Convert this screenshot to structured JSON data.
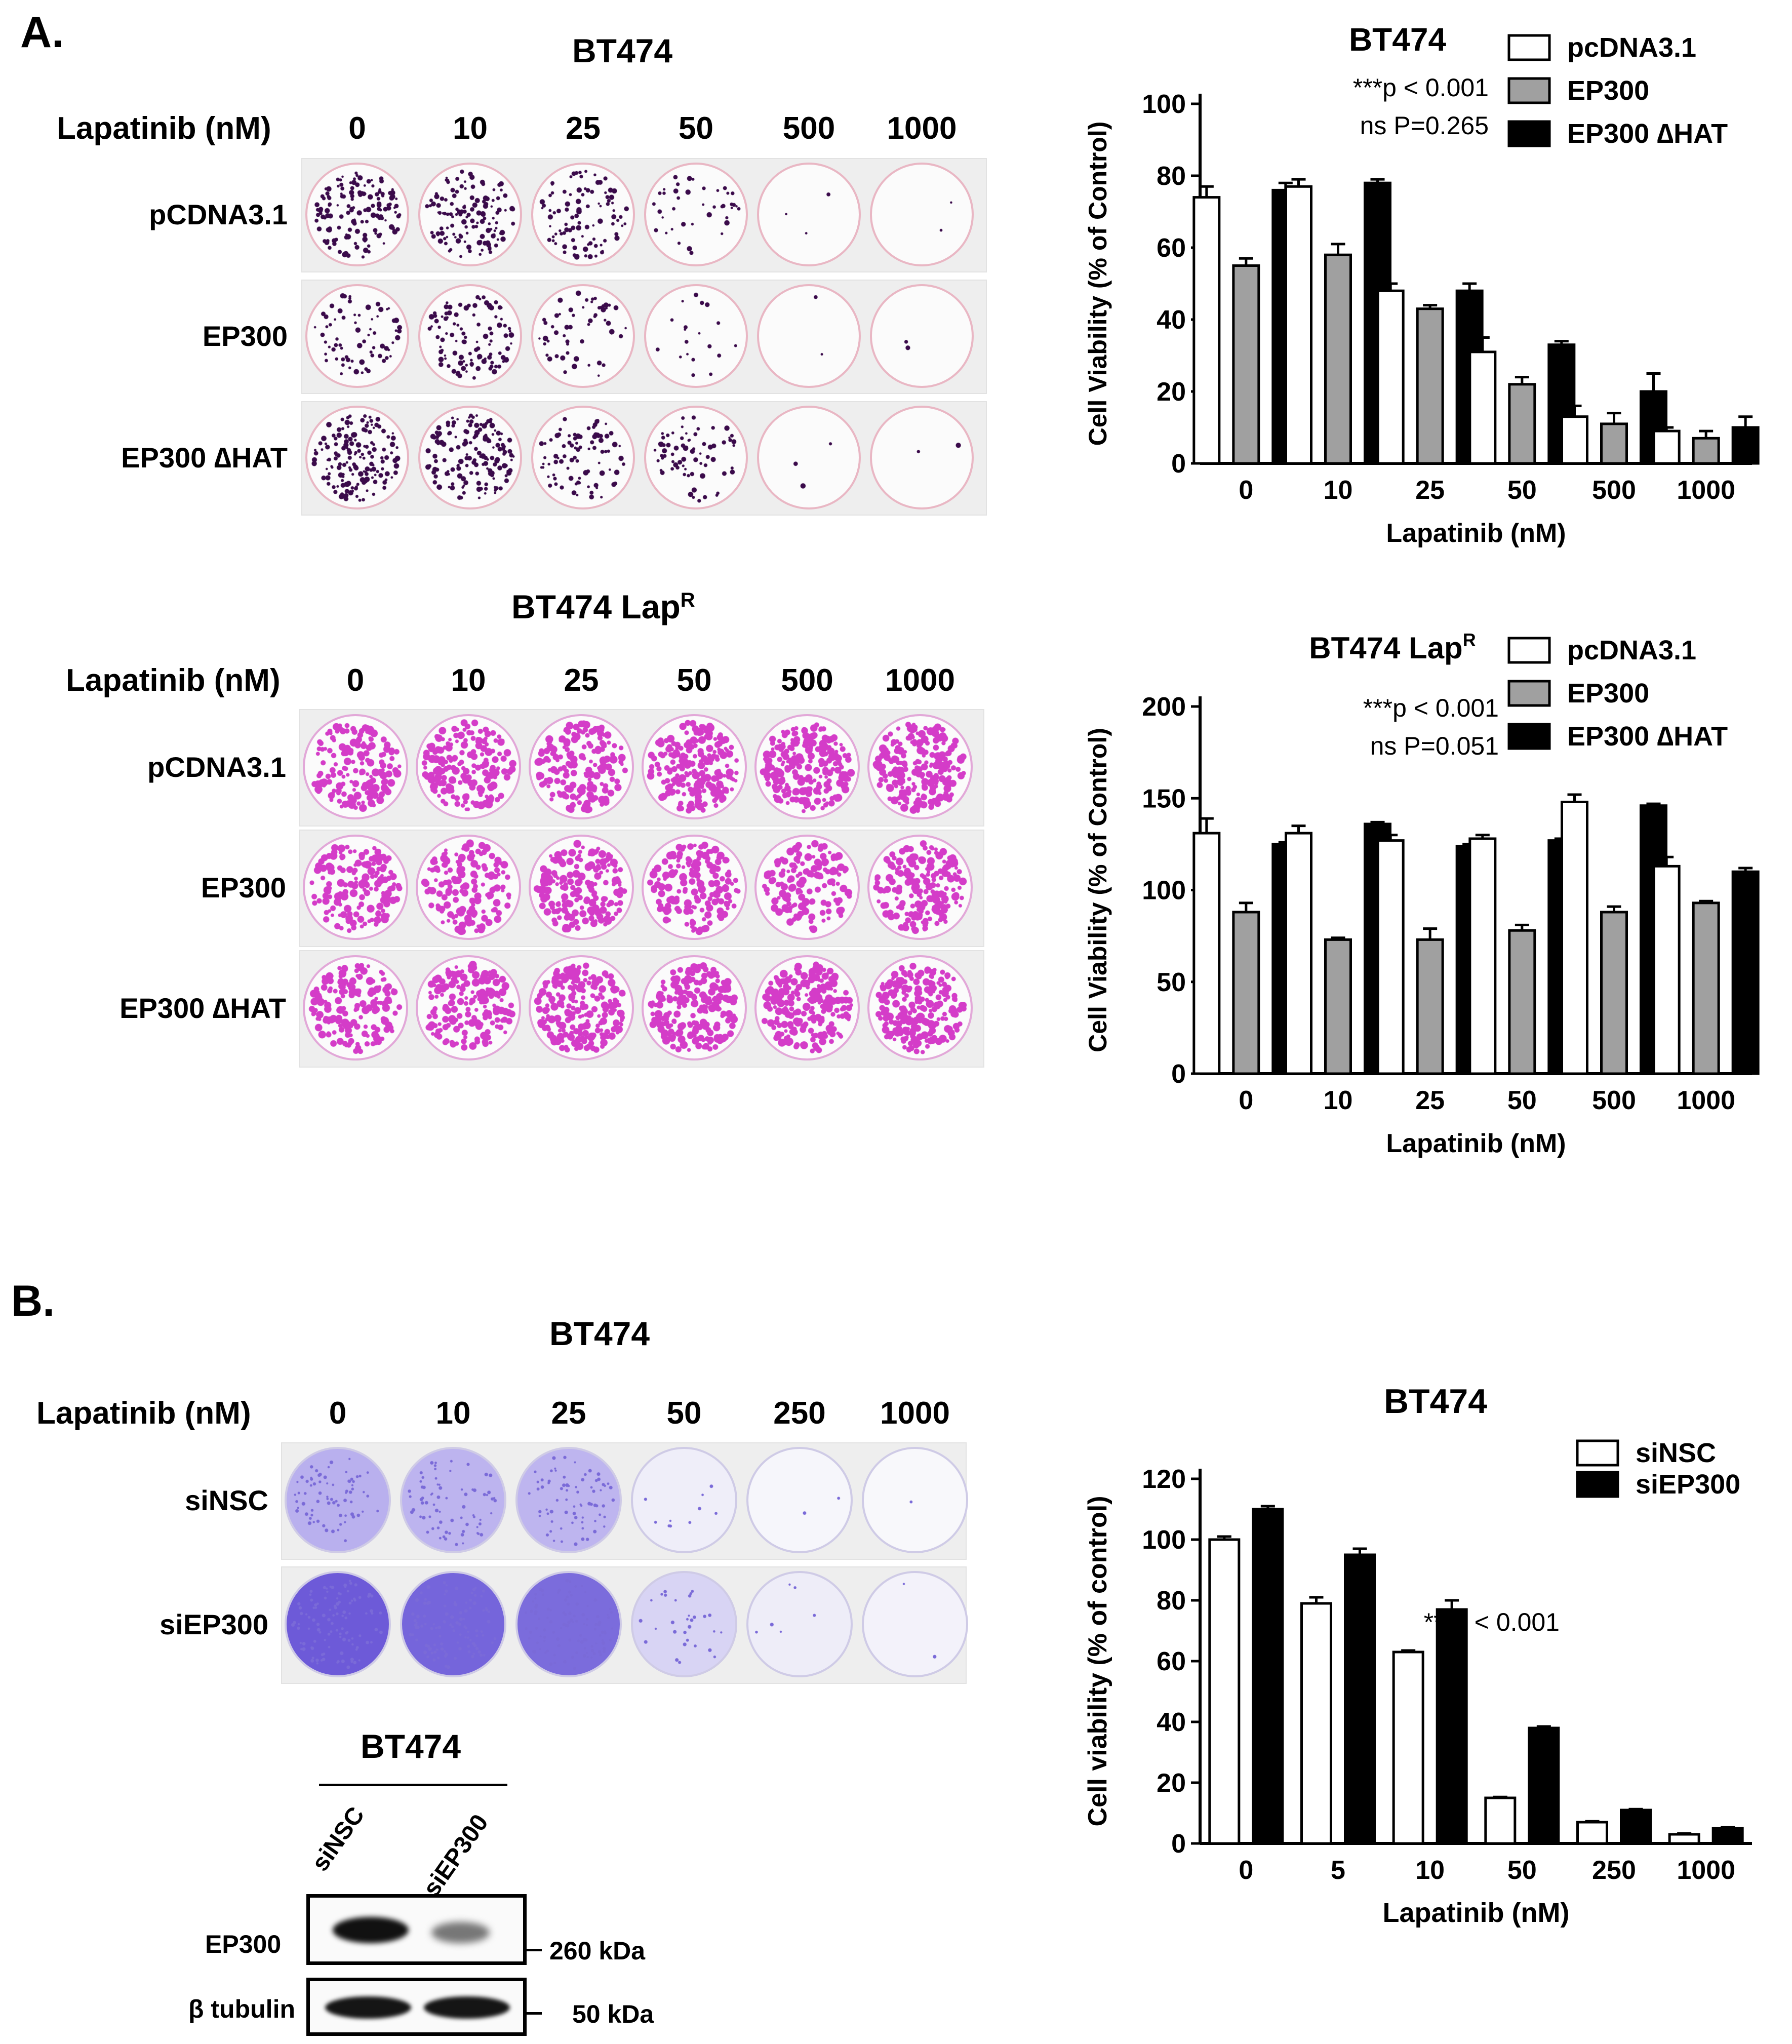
{
  "panel_a": {
    "label": "A.",
    "plates": [
      {
        "title_main": "BT474",
        "title_sup": "",
        "header_label": "Lapatinib (nM)",
        "doses": [
          "0",
          "10",
          "25",
          "50",
          "500",
          "1000"
        ],
        "rows": [
          "pCDNA3.1",
          "EP300",
          "EP300 ∆HAT"
        ],
        "stain_color": "#3a0a4a"
      },
      {
        "title_main": "BT474 Lap",
        "title_sup": "R",
        "header_label": "Lapatinib (nM)",
        "doses": [
          "0",
          "10",
          "25",
          "50",
          "500",
          "1000"
        ],
        "rows": [
          "pCDNA3.1",
          "EP300",
          "EP300 ∆HAT"
        ],
        "stain_color": "#d43cc8"
      }
    ]
  },
  "panel_b": {
    "label": "B.",
    "plate": {
      "title_main": "BT474",
      "header_label": "Lapatinib (nM)",
      "doses": [
        "0",
        "10",
        "25",
        "50",
        "250",
        "1000"
      ],
      "rows": [
        "siNSC",
        "siEP300"
      ],
      "stain_color": "#7a6ad8"
    },
    "western_blot": {
      "title": "BT474",
      "lanes": [
        "siNSC",
        "siEP300"
      ],
      "rows": [
        {
          "label": "EP300",
          "marker": "260 kDa"
        },
        {
          "label": "β tubulin",
          "marker": "50 kDa"
        }
      ]
    }
  },
  "chart_data": [
    {
      "type": "bar",
      "title": "BT474",
      "xlabel": "Lapatinib (nM)",
      "ylabel": "Cell Viability (% of Control)",
      "categories": [
        "0",
        "10",
        "25",
        "50",
        "500",
        "1000"
      ],
      "ylim": [
        0,
        100
      ],
      "yticks": [
        "0",
        "20",
        "40",
        "60",
        "80",
        "100"
      ],
      "annotations": [
        "***p < 0.001",
        "ns P=0.265"
      ],
      "legend_position": "top-right",
      "series": [
        {
          "name": "pcDNA3.1",
          "color": "#ffffff",
          "values": [
            74,
            77,
            48,
            31,
            13,
            9
          ],
          "errors": [
            3,
            2,
            2,
            4,
            3,
            1
          ]
        },
        {
          "name": "EP300",
          "color": "#a0a0a0",
          "values": [
            55,
            58,
            43,
            22,
            11,
            7
          ],
          "errors": [
            2,
            3,
            1,
            2,
            3,
            2
          ]
        },
        {
          "name": "EP300 ∆HAT",
          "color": "#000000",
          "values": [
            76,
            78,
            48,
            33,
            20,
            10
          ],
          "errors": [
            2,
            1,
            2,
            1,
            5,
            3
          ]
        }
      ]
    },
    {
      "type": "bar",
      "title": "BT474 Lap",
      "title_sup": "R",
      "xlabel": "Lapatinib (nM)",
      "ylabel": "Cell Viability (% of Control)",
      "categories": [
        "0",
        "10",
        "25",
        "50",
        "500",
        "1000"
      ],
      "ylim": [
        0,
        200
      ],
      "yticks": [
        "0",
        "50",
        "100",
        "150",
        "200"
      ],
      "annotations": [
        "***p < 0.001",
        "ns P=0.051"
      ],
      "legend_position": "top-right",
      "series": [
        {
          "name": "pcDNA3.1",
          "color": "#ffffff",
          "values": [
            131,
            131,
            127,
            128,
            148,
            113
          ],
          "errors": [
            8,
            4,
            3,
            2,
            4,
            5
          ]
        },
        {
          "name": "EP300",
          "color": "#a0a0a0",
          "values": [
            88,
            73,
            73,
            78,
            88,
            93
          ],
          "errors": [
            5,
            1,
            6,
            3,
            3,
            1
          ]
        },
        {
          "name": "EP300 ∆HAT",
          "color": "#000000",
          "values": [
            125,
            136,
            124,
            127,
            146,
            110
          ],
          "errors": [
            1,
            1,
            1,
            1,
            1,
            2
          ]
        }
      ]
    },
    {
      "type": "bar",
      "title": "BT474",
      "xlabel": "Lapatinib (nM)",
      "ylabel": "Cell viability (% of control)",
      "categories": [
        "0",
        "5",
        "10",
        "50",
        "250",
        "1000"
      ],
      "ylim": [
        0,
        120
      ],
      "yticks": [
        "0",
        "20",
        "40",
        "60",
        "80",
        "100",
        "120"
      ],
      "annotations": [
        "***p < 0.001"
      ],
      "legend_position": "top-right",
      "series": [
        {
          "name": "siNSC",
          "color": "#ffffff",
          "values": [
            100,
            79,
            63,
            15,
            7,
            3
          ],
          "errors": [
            1,
            2,
            0.5,
            0.3,
            0.3,
            0.3
          ]
        },
        {
          "name": "siEP300",
          "color": "#000000",
          "values": [
            110,
            95,
            77,
            38,
            11,
            5
          ],
          "errors": [
            1,
            2,
            3,
            0.5,
            0.3,
            0.3
          ]
        }
      ]
    }
  ]
}
